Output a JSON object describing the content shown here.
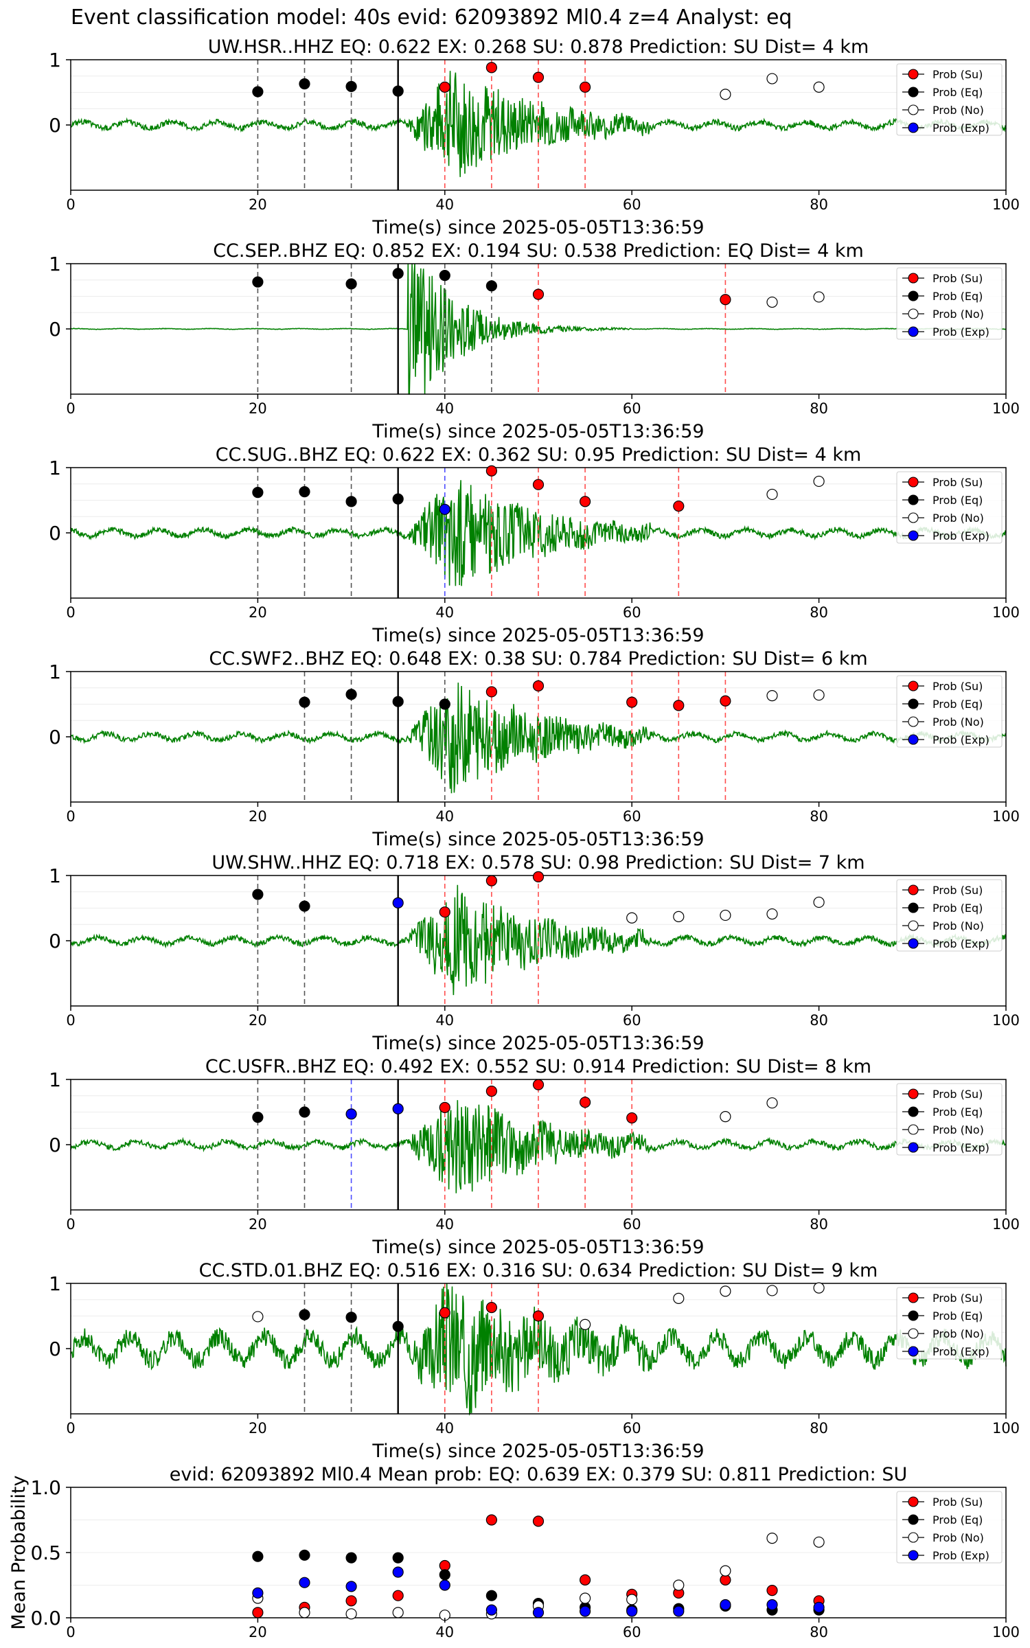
{
  "figure": {
    "suptitle": "Event classification model: 40s evid: 62093892 Ml0.4 z=4 Analyst: eq",
    "colors": {
      "su": "#ff0000",
      "eq": "#000000",
      "no": "#ffffff",
      "exp": "#0000ff",
      "wave": "#008000",
      "su_line": "#ff4d4d",
      "eq_line": "#555555",
      "exp_line": "#4d4dff",
      "main_line": "#000000"
    },
    "legend": [
      "Prob (Su)",
      "Prob (Eq)",
      "Prob (No)",
      "Prob (Exp)"
    ]
  },
  "chart_data": [
    {
      "type": "scatter",
      "title": "UW.HSR..HHZ   EQ: 0.622  EX: 0.268  SU: 0.878   Prediction: SU    Dist= 4 km",
      "xlabel": "Time(s) since 2025-05-05T13:36:59",
      "ylabel": "",
      "xlim": [
        0,
        100
      ],
      "ylim": [
        -1,
        1
      ],
      "xticks": [
        "0",
        "20",
        "40",
        "60",
        "80",
        "100"
      ],
      "yticks": [
        "0",
        "1"
      ],
      "waveform_amp": "medium",
      "legend_position": "top-right",
      "series": [
        {
          "name": "Prob (Su)",
          "x": [
            40,
            45,
            50,
            55
          ],
          "y": [
            0.58,
            0.88,
            0.73,
            0.58
          ]
        },
        {
          "name": "Prob (Eq)",
          "x": [
            20,
            25,
            30,
            35
          ],
          "y": [
            0.51,
            0.63,
            0.59,
            0.52
          ]
        },
        {
          "name": "Prob (No)",
          "x": [
            70,
            75,
            80
          ],
          "y": [
            0.47,
            0.71,
            0.58
          ]
        },
        {
          "name": "Prob (Exp)",
          "x": [],
          "y": []
        }
      ]
    },
    {
      "type": "scatter",
      "title": "CC.SEP..BHZ   EQ: 0.852  EX: 0.194  SU: 0.538   Prediction: EQ    Dist= 4 km",
      "xlabel": "Time(s) since 2025-05-05T13:36:59",
      "ylabel": "",
      "xlim": [
        0,
        100
      ],
      "ylim": [
        -1,
        1
      ],
      "xticks": [
        "0",
        "20",
        "40",
        "60",
        "80",
        "100"
      ],
      "yticks": [
        "0",
        "1"
      ],
      "waveform_amp": "burst",
      "legend_position": "top-right",
      "series": [
        {
          "name": "Prob (Su)",
          "x": [
            50,
            70
          ],
          "y": [
            0.53,
            0.45
          ]
        },
        {
          "name": "Prob (Eq)",
          "x": [
            20,
            30,
            35,
            40,
            45
          ],
          "y": [
            0.72,
            0.69,
            0.85,
            0.82,
            0.66
          ]
        },
        {
          "name": "Prob (No)",
          "x": [
            75,
            80
          ],
          "y": [
            0.41,
            0.49
          ]
        },
        {
          "name": "Prob (Exp)",
          "x": [],
          "y": []
        }
      ]
    },
    {
      "type": "scatter",
      "title": "CC.SUG..BHZ   EQ: 0.622  EX: 0.362  SU: 0.95   Prediction: SU    Dist= 4 km",
      "xlabel": "Time(s) since 2025-05-05T13:36:59",
      "ylabel": "",
      "xlim": [
        0,
        100
      ],
      "ylim": [
        -1,
        1
      ],
      "xticks": [
        "0",
        "20",
        "40",
        "60",
        "80",
        "100"
      ],
      "yticks": [
        "0",
        "1"
      ],
      "waveform_amp": "medium",
      "legend_position": "top-right",
      "series": [
        {
          "name": "Prob (Su)",
          "x": [
            45,
            50,
            55,
            65
          ],
          "y": [
            0.95,
            0.74,
            0.48,
            0.41
          ]
        },
        {
          "name": "Prob (Eq)",
          "x": [
            20,
            25,
            30,
            35
          ],
          "y": [
            0.62,
            0.63,
            0.48,
            0.52
          ]
        },
        {
          "name": "Prob (No)",
          "x": [
            75,
            80
          ],
          "y": [
            0.59,
            0.79
          ]
        },
        {
          "name": "Prob (Exp)",
          "x": [
            40
          ],
          "y": [
            0.36
          ]
        }
      ]
    },
    {
      "type": "scatter",
      "title": "CC.SWF2..BHZ   EQ: 0.648  EX: 0.38  SU: 0.784   Prediction: SU    Dist= 6 km",
      "xlabel": "Time(s) since 2025-05-05T13:36:59",
      "ylabel": "",
      "xlim": [
        0,
        100
      ],
      "ylim": [
        -1,
        1
      ],
      "xticks": [
        "0",
        "20",
        "40",
        "60",
        "80",
        "100"
      ],
      "yticks": [
        "0",
        "1"
      ],
      "waveform_amp": "medium",
      "legend_position": "top-right",
      "series": [
        {
          "name": "Prob (Su)",
          "x": [
            45,
            50,
            60,
            65,
            70
          ],
          "y": [
            0.69,
            0.78,
            0.53,
            0.48,
            0.55
          ]
        },
        {
          "name": "Prob (Eq)",
          "x": [
            25,
            30,
            35,
            40
          ],
          "y": [
            0.53,
            0.65,
            0.54,
            0.5
          ]
        },
        {
          "name": "Prob (No)",
          "x": [
            75,
            80
          ],
          "y": [
            0.63,
            0.64
          ]
        },
        {
          "name": "Prob (Exp)",
          "x": [],
          "y": []
        }
      ]
    },
    {
      "type": "scatter",
      "title": "UW.SHW..HHZ   EQ: 0.718  EX: 0.578  SU: 0.98   Prediction: SU    Dist= 7 km",
      "xlabel": "Time(s) since 2025-05-05T13:36:59",
      "ylabel": "",
      "xlim": [
        0,
        100
      ],
      "ylim": [
        -1,
        1
      ],
      "xticks": [
        "0",
        "20",
        "40",
        "60",
        "80",
        "100"
      ],
      "yticks": [
        "0",
        "1"
      ],
      "waveform_amp": "medium",
      "legend_position": "top-right",
      "series": [
        {
          "name": "Prob (Su)",
          "x": [
            40,
            45,
            50
          ],
          "y": [
            0.44,
            0.92,
            0.98
          ]
        },
        {
          "name": "Prob (Eq)",
          "x": [
            20,
            25
          ],
          "y": [
            0.71,
            0.53
          ]
        },
        {
          "name": "Prob (No)",
          "x": [
            60,
            65,
            70,
            75,
            80
          ],
          "y": [
            0.35,
            0.37,
            0.39,
            0.41,
            0.59
          ]
        },
        {
          "name": "Prob (Exp)",
          "x": [
            35
          ],
          "y": [
            0.58
          ]
        }
      ]
    },
    {
      "type": "scatter",
      "title": "CC.USFR..BHZ   EQ: 0.492  EX: 0.552  SU: 0.914   Prediction: SU    Dist= 8 km",
      "xlabel": "Time(s) since 2025-05-05T13:36:59",
      "ylabel": "",
      "xlim": [
        0,
        100
      ],
      "ylim": [
        -1,
        1
      ],
      "xticks": [
        "0",
        "20",
        "40",
        "60",
        "80",
        "100"
      ],
      "yticks": [
        "0",
        "1"
      ],
      "waveform_amp": "medium",
      "legend_position": "top-right",
      "series": [
        {
          "name": "Prob (Su)",
          "x": [
            40,
            45,
            50,
            55,
            60
          ],
          "y": [
            0.57,
            0.82,
            0.92,
            0.65,
            0.41
          ]
        },
        {
          "name": "Prob (Eq)",
          "x": [
            20,
            25
          ],
          "y": [
            0.42,
            0.5
          ]
        },
        {
          "name": "Prob (No)",
          "x": [
            70,
            75
          ],
          "y": [
            0.43,
            0.64
          ]
        },
        {
          "name": "Prob (Exp)",
          "x": [
            30,
            35
          ],
          "y": [
            0.47,
            0.55
          ]
        }
      ]
    },
    {
      "type": "scatter",
      "title": "CC.STD.01.BHZ   EQ: 0.516  EX: 0.316  SU: 0.634   Prediction: SU    Dist= 9 km",
      "xlabel": "Time(s) since 2025-05-05T13:36:59",
      "ylabel": "",
      "xlim": [
        0,
        100
      ],
      "ylim": [
        -1,
        1
      ],
      "xticks": [
        "0",
        "20",
        "40",
        "60",
        "80",
        "100"
      ],
      "yticks": [
        "0",
        "1"
      ],
      "waveform_amp": "noisy",
      "legend_position": "top-right",
      "series": [
        {
          "name": "Prob (Su)",
          "x": [
            40,
            45,
            50
          ],
          "y": [
            0.55,
            0.63,
            0.5
          ]
        },
        {
          "name": "Prob (Eq)",
          "x": [
            25,
            30,
            35
          ],
          "y": [
            0.52,
            0.48,
            0.34
          ]
        },
        {
          "name": "Prob (No)",
          "x": [
            20,
            55,
            65,
            70,
            75,
            80
          ],
          "y": [
            0.49,
            0.37,
            0.77,
            0.88,
            0.89,
            0.93
          ]
        },
        {
          "name": "Prob (Exp)",
          "x": [],
          "y": []
        }
      ]
    },
    {
      "type": "scatter",
      "title": "evid: 62093892  Ml0.4   Mean prob:   EQ: 0.639  EX: 0.379  SU: 0.811   Prediction: SU",
      "xlabel": "",
      "ylabel": "Mean Probability",
      "xlim": [
        0,
        100
      ],
      "ylim": [
        0,
        1
      ],
      "xticks": [
        "0",
        "20",
        "40",
        "60",
        "80",
        "100"
      ],
      "yticks": [
        "0.0",
        "0.5",
        "1.0"
      ],
      "legend_position": "top-right",
      "series": [
        {
          "name": "Prob (Su)",
          "x": [
            20,
            25,
            30,
            35,
            40,
            45,
            50,
            55,
            60,
            65,
            70,
            75,
            80
          ],
          "y": [
            0.04,
            0.08,
            0.13,
            0.17,
            0.4,
            0.75,
            0.74,
            0.29,
            0.18,
            0.19,
            0.29,
            0.21,
            0.13
          ]
        },
        {
          "name": "Prob (Eq)",
          "x": [
            20,
            25,
            30,
            35,
            40,
            45,
            50,
            55,
            60,
            65,
            70,
            75,
            80
          ],
          "y": [
            0.47,
            0.48,
            0.46,
            0.46,
            0.33,
            0.17,
            0.11,
            0.08,
            0.06,
            0.07,
            0.09,
            0.06,
            0.06
          ]
        },
        {
          "name": "Prob (No)",
          "x": [
            20,
            25,
            30,
            35,
            40,
            45,
            50,
            55,
            60,
            65,
            70,
            75,
            80
          ],
          "y": [
            0.15,
            0.04,
            0.03,
            0.04,
            0.02,
            0.03,
            0.09,
            0.15,
            0.14,
            0.25,
            0.36,
            0.61,
            0.58
          ]
        },
        {
          "name": "Prob (Exp)",
          "x": [
            20,
            25,
            30,
            35,
            40,
            45,
            50,
            55,
            60,
            65,
            70,
            75,
            80
          ],
          "y": [
            0.19,
            0.27,
            0.24,
            0.35,
            0.25,
            0.06,
            0.04,
            0.05,
            0.05,
            0.05,
            0.1,
            0.1,
            0.08
          ]
        }
      ]
    }
  ]
}
